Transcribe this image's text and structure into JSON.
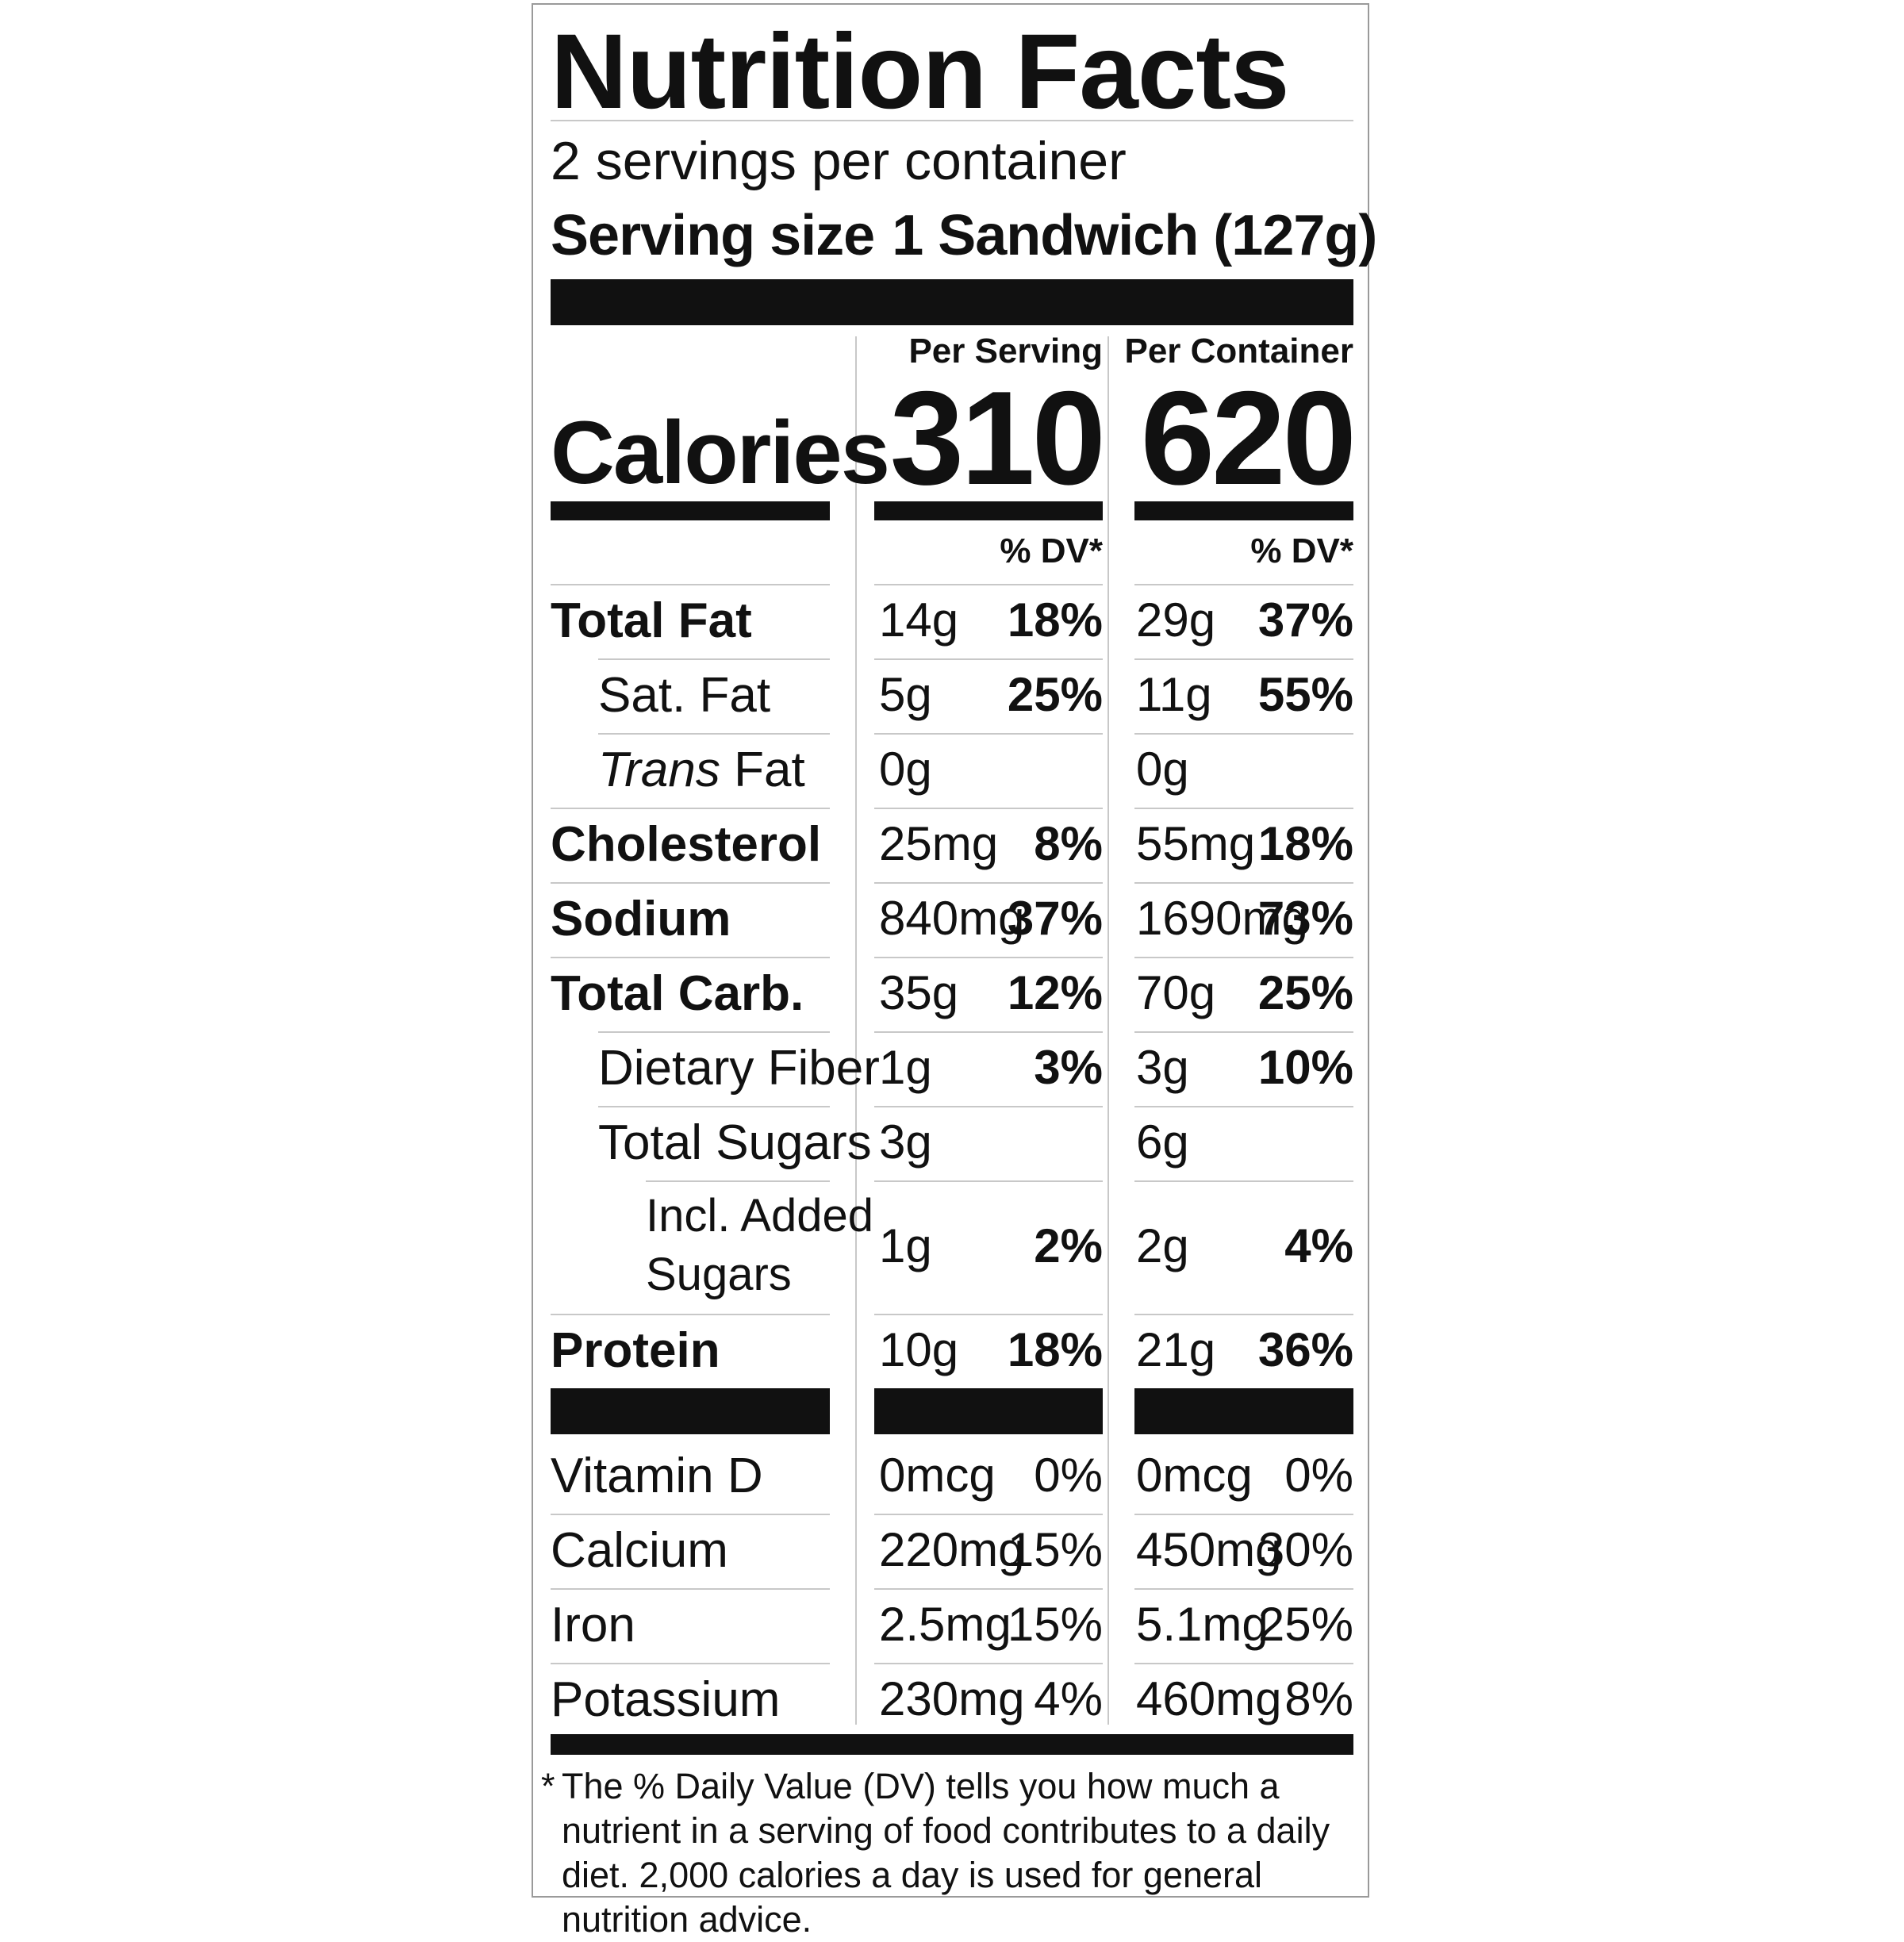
{
  "title": "Nutrition Facts",
  "servings_per_container": "2 servings per container",
  "serving_size_label": "Serving size",
  "serving_size_value": "1 Sandwich (127g)",
  "columns": {
    "per_serving": "Per Serving",
    "per_container": "Per Container",
    "dv_label": "% DV*"
  },
  "calories": {
    "label": "Calories",
    "per_serving": "310",
    "per_container": "620"
  },
  "nutrients": [
    {
      "name": "Total Fat",
      "bold": true,
      "indent": 0,
      "serving_amount": "14g",
      "serving_dv": "18%",
      "container_amount": "29g",
      "container_dv": "37%"
    },
    {
      "name": "Sat. Fat",
      "bold": false,
      "indent": 1,
      "serving_amount": "5g",
      "serving_dv": "25%",
      "container_amount": "11g",
      "container_dv": "55%"
    },
    {
      "name_italic": "Trans",
      "name": " Fat",
      "bold": false,
      "indent": 1,
      "serving_amount": "0g",
      "serving_dv": "",
      "container_amount": "0g",
      "container_dv": ""
    },
    {
      "name": "Cholesterol",
      "bold": true,
      "indent": 0,
      "serving_amount": "25mg",
      "serving_dv": "8%",
      "container_amount": "55mg",
      "container_dv": "18%"
    },
    {
      "name": "Sodium",
      "bold": true,
      "indent": 0,
      "serving_amount": "840mg",
      "serving_dv": "37%",
      "container_amount": "1690mg",
      "container_dv": "73%"
    },
    {
      "name": "Total Carb.",
      "bold": true,
      "indent": 0,
      "serving_amount": "35g",
      "serving_dv": "12%",
      "container_amount": "70g",
      "container_dv": "25%"
    },
    {
      "name": "Dietary Fiber",
      "bold": false,
      "indent": 1,
      "serving_amount": "1g",
      "serving_dv": "3%",
      "container_amount": "3g",
      "container_dv": "10%"
    },
    {
      "name": "Total Sugars",
      "bold": false,
      "indent": 1,
      "serving_amount": "3g",
      "serving_dv": "",
      "container_amount": "6g",
      "container_dv": ""
    },
    {
      "name_line1": "Incl. Added",
      "name_line2": "Sugars",
      "bold": false,
      "indent": 2,
      "serving_amount": "1g",
      "serving_dv": "2%",
      "container_amount": "2g",
      "container_dv": "4%"
    },
    {
      "name": "Protein",
      "bold": true,
      "indent": 0,
      "serving_amount": "10g",
      "serving_dv": "18%",
      "container_amount": "21g",
      "container_dv": "36%"
    }
  ],
  "vitamins": [
    {
      "name": "Vitamin D",
      "serving_amount": "0mcg",
      "serving_dv": "0%",
      "container_amount": "0mcg",
      "container_dv": "0%"
    },
    {
      "name": "Calcium",
      "serving_amount": "220mg",
      "serving_dv": "15%",
      "container_amount": "450mg",
      "container_dv": "30%"
    },
    {
      "name": "Iron",
      "serving_amount": "2.5mg",
      "serving_dv": "15%",
      "container_amount": "5.1mg",
      "container_dv": "25%"
    },
    {
      "name": "Potassium",
      "serving_amount": "230mg",
      "serving_dv": "4%",
      "container_amount": "460mg",
      "container_dv": "8%"
    }
  ],
  "footnote_star": "*",
  "footnote": "The % Daily Value (DV) tells you how much a nutrient in a serving of food contributes to a daily diet. 2,000 calories a day is used for general nutrition advice."
}
